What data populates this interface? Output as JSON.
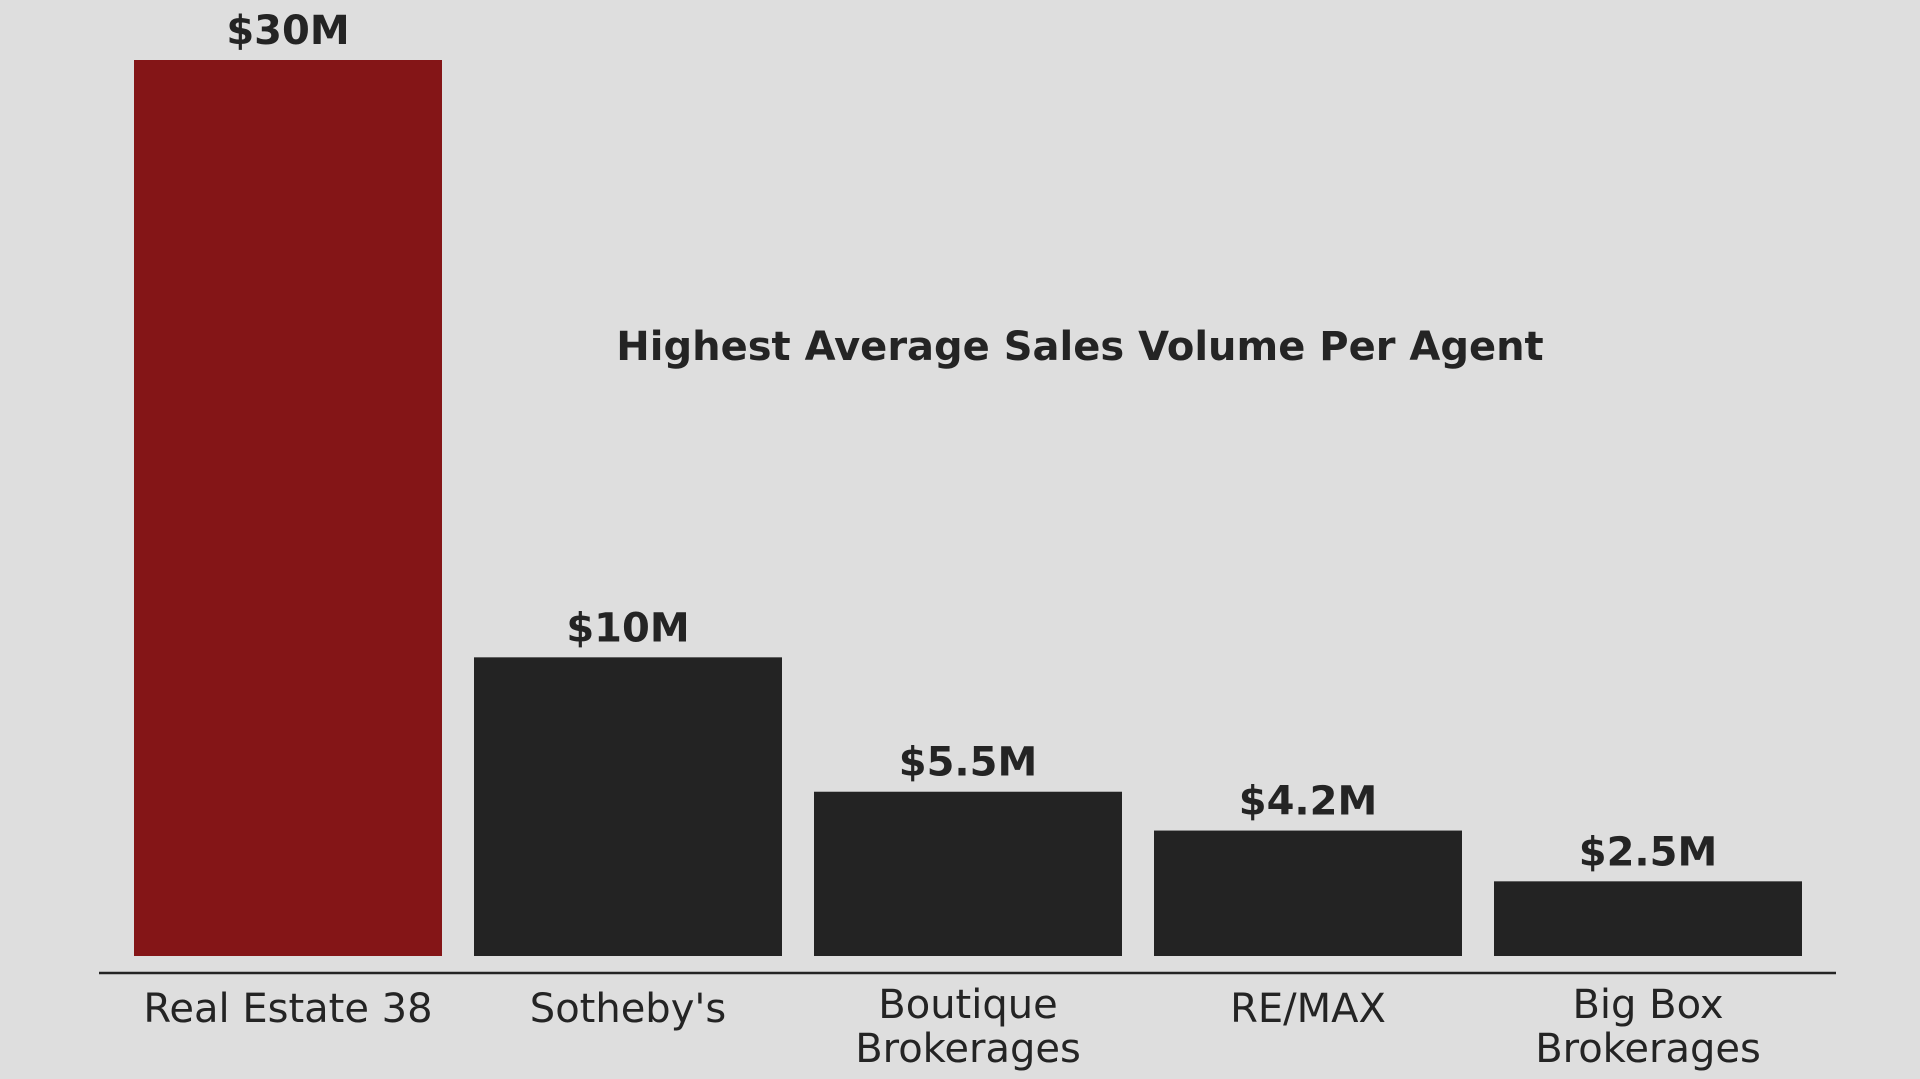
{
  "chart_data": {
    "type": "bar",
    "title": "Highest Average Sales Volume Per Agent",
    "categories": [
      [
        "Real Estate 38"
      ],
      [
        "Sotheby's"
      ],
      [
        "Boutique",
        "Brokerages"
      ],
      [
        "RE/MAX"
      ],
      [
        "Big Box",
        "Brokerages"
      ]
    ],
    "values": [
      30,
      10,
      5.5,
      4.2,
      2.5
    ],
    "value_labels": [
      "$30M",
      "$10M",
      "$5.5M",
      "$4.2M",
      "$2.5M"
    ],
    "unit": "$M",
    "ylim": [
      0,
      30
    ],
    "grid": false,
    "legend": "none",
    "colors": [
      "#841517",
      "#232323",
      "#232323",
      "#232323",
      "#232323"
    ]
  }
}
